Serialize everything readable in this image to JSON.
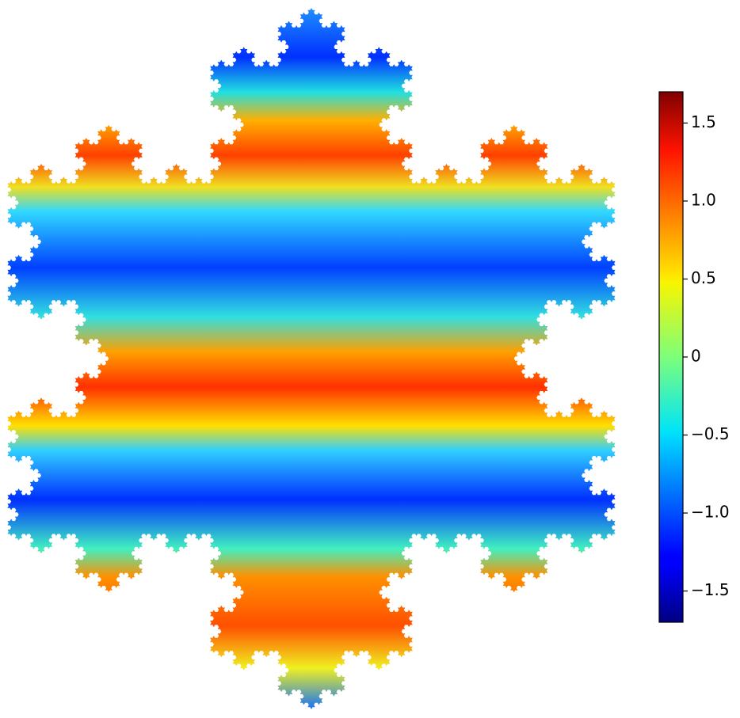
{
  "chart_data": {
    "type": "colorbar",
    "colormap": "jet",
    "ylim": [
      -1.7,
      1.7
    ],
    "yticks": [
      {
        "value": -1.5,
        "label": "−1.5"
      },
      {
        "value": -1,
        "label": "−1.0"
      },
      {
        "value": -0.5,
        "label": "−0.5"
      },
      0,
      0.5,
      {
        "value": 1,
        "label": "1.0"
      },
      1.5
    ]
  }
}
